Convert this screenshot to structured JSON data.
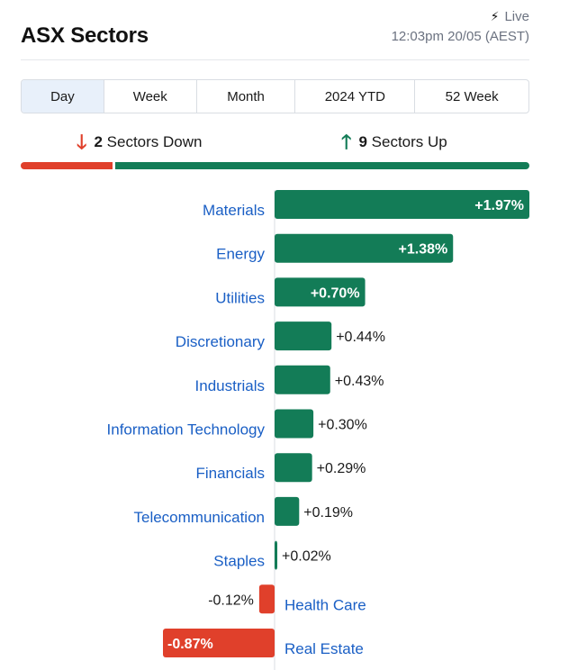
{
  "header": {
    "title": "ASX Sectors",
    "live_label": "Live",
    "live_icon": "lightning-icon",
    "timestamp": "12:03pm 20/05 (AEST)"
  },
  "tabs": [
    {
      "label": "Day",
      "active": true
    },
    {
      "label": "Week",
      "active": false
    },
    {
      "label": "Month",
      "active": false
    },
    {
      "label": "2024 YTD",
      "active": false
    },
    {
      "label": "52 Week",
      "active": false
    }
  ],
  "summary": {
    "down_count": "2",
    "down_label": "Sectors Down",
    "up_count": "9",
    "up_label": "Sectors Up"
  },
  "colors": {
    "positive": "#137c57",
    "negative": "#e0402b",
    "label": "#1a5fc5",
    "active_tab": "#e8f0fa"
  },
  "chart_data": {
    "type": "bar",
    "orientation": "horizontal",
    "categories": [
      "Materials",
      "Energy",
      "Utilities",
      "Discretionary",
      "Industrials",
      "Information Technology",
      "Financials",
      "Telecommunication",
      "Staples",
      "Health Care",
      "Real Estate"
    ],
    "values": [
      1.97,
      1.38,
      0.7,
      0.44,
      0.43,
      0.3,
      0.29,
      0.19,
      0.02,
      -0.12,
      -0.87
    ],
    "value_labels": [
      "+1.97%",
      "+1.38%",
      "+0.70%",
      "+0.44%",
      "+0.43%",
      "+0.30%",
      "+0.29%",
      "+0.19%",
      "+0.02%",
      "-0.12%",
      "-0.87%"
    ],
    "xlim": [
      -0.87,
      1.97
    ],
    "grid": false,
    "legend": "none"
  }
}
